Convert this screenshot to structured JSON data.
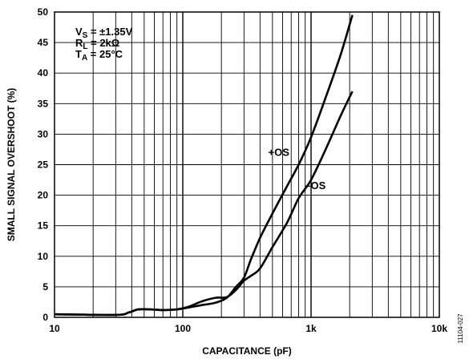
{
  "chart_data": {
    "type": "line",
    "title": "",
    "xlabel": "CAPACITANCE (pF)",
    "ylabel": "SMALL SIGNAL OVERSHOOT (%)",
    "x_scale": "log",
    "xlim": [
      10,
      10000
    ],
    "ylim": [
      0,
      50
    ],
    "grid": true,
    "x_tick_labels": [
      {
        "value": 10,
        "label": "10"
      },
      {
        "value": 100,
        "label": "100"
      },
      {
        "value": 1000,
        "label": "1k"
      },
      {
        "value": 10000,
        "label": "10k"
      }
    ],
    "y_ticks": [
      0,
      5,
      10,
      15,
      20,
      25,
      30,
      35,
      40,
      45,
      50
    ],
    "conditions": [
      {
        "symbol": "V",
        "sub": "S",
        "rest": " = ±1.35V"
      },
      {
        "symbol": "R",
        "sub": "L",
        "rest": " = 2kΩ"
      },
      {
        "symbol": "T",
        "sub": "A",
        "rest": " = 25°C"
      }
    ],
    "series": [
      {
        "name": "+OS",
        "label_at": {
          "x": 560,
          "y": 27
        },
        "x": [
          10,
          30,
          38,
          45,
          55,
          70,
          90,
          110,
          140,
          180,
          220,
          260,
          300,
          340,
          400,
          500,
          650,
          800,
          1000,
          1300,
          1700,
          2100
        ],
        "y": [
          0.5,
          0.4,
          0.8,
          1.3,
          1.3,
          1.2,
          1.3,
          1.6,
          2.0,
          2.4,
          3.2,
          5.0,
          6.5,
          9.5,
          13.0,
          17.0,
          21.5,
          25.0,
          29.5,
          36.0,
          43.0,
          49.5
        ]
      },
      {
        "name": "–OS",
        "label_at": {
          "x": 1080,
          "y": 21.5
        },
        "x": [
          10,
          30,
          38,
          45,
          55,
          70,
          90,
          110,
          140,
          180,
          220,
          260,
          300,
          340,
          400,
          500,
          650,
          800,
          1000,
          1300,
          1700,
          2100
        ],
        "y": [
          0.5,
          0.4,
          0.8,
          1.3,
          1.3,
          1.2,
          1.3,
          1.7,
          2.6,
          3.2,
          3.3,
          4.5,
          6.0,
          6.8,
          8.0,
          11.5,
          15.5,
          19.5,
          22.5,
          27.5,
          33.0,
          37.0
        ]
      }
    ],
    "figure_id": "11104-027"
  }
}
